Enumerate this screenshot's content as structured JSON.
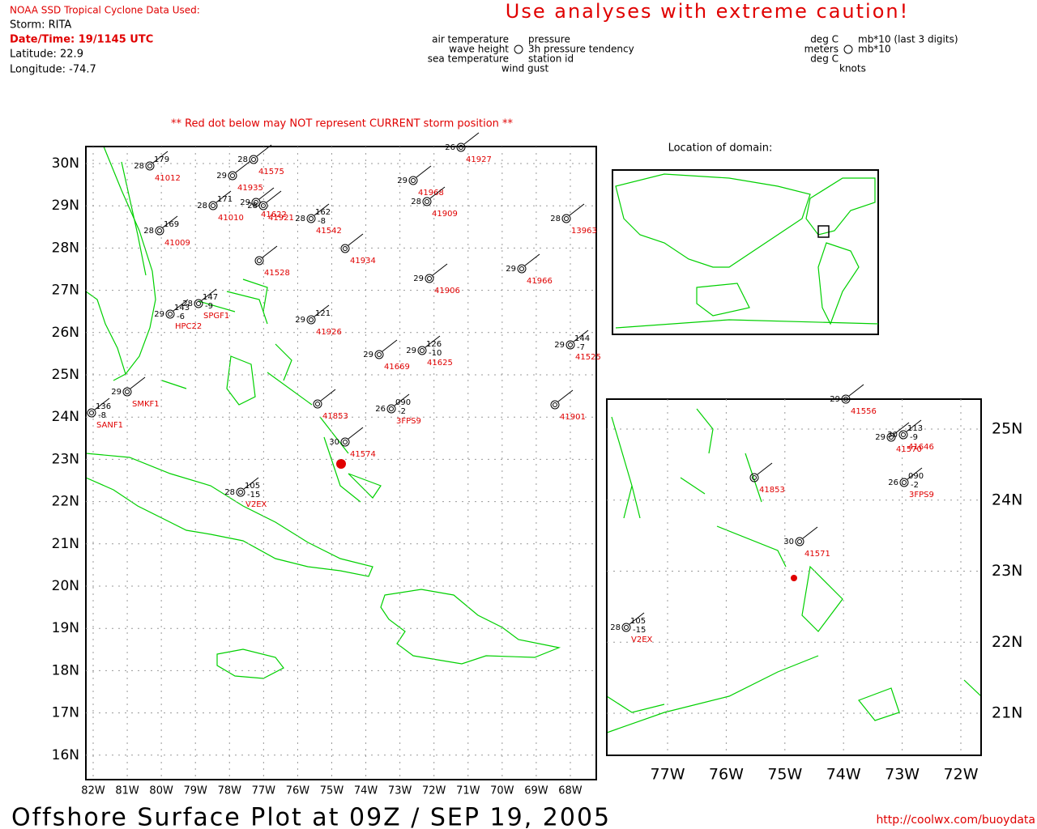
{
  "header": {
    "source": "NOAA SSD Tropical Cyclone Data Used:",
    "storm": "Storm: RITA",
    "datetime": "Date/Time: 19/1145 UTC",
    "latitude": "Latitude: 22.9",
    "longitude": "Longitude: -74.7"
  },
  "caution": "Use analyses with extreme caution!",
  "legend": {
    "left": [
      "air temperature",
      "wave height",
      "sea temperature"
    ],
    "right": [
      "pressure",
      "3h pressure tendency",
      "station id"
    ],
    "bottom": "wind gust"
  },
  "units": {
    "left": [
      "deg C",
      "meters",
      "deg C"
    ],
    "right": [
      "mb*10 (last 3 digits)",
      "mb*10"
    ],
    "bottom": "knots"
  },
  "note": "** Red dot below may NOT represent CURRENT storm position **",
  "main_map": {
    "lat_labels": [
      "30N",
      "29N",
      "28N",
      "27N",
      "26N",
      "25N",
      "24N",
      "23N",
      "22N",
      "21N",
      "20N",
      "19N",
      "18N",
      "17N",
      "16N"
    ],
    "lon_labels": [
      "82W",
      "81W",
      "80W",
      "79W",
      "78W",
      "77W",
      "76W",
      "75W",
      "74W",
      "73W",
      "72W",
      "71W",
      "70W",
      "69W",
      "68W"
    ],
    "stations": [
      {
        "id": "41012",
        "temp": "28",
        "pressure": "179"
      },
      {
        "id": "41935",
        "temp": "29"
      },
      {
        "id": "41575",
        "temp": "28"
      },
      {
        "id": "41622",
        "temp": "29"
      },
      {
        "id": "41921",
        "temp": "28"
      },
      {
        "id": "41010",
        "temp": "28",
        "pressure": "171"
      },
      {
        "id": "41009",
        "temp": "28",
        "pressure": "169"
      },
      {
        "id": "41542",
        "temp": "28",
        "pressure": "162",
        "tendency": "-8"
      },
      {
        "id": "41934"
      },
      {
        "id": "41528"
      },
      {
        "id": "41927",
        "temp": "26"
      },
      {
        "id": "41968",
        "temp": "29"
      },
      {
        "id": "41909",
        "temp": "28"
      },
      {
        "id": "13963",
        "temp": "28"
      },
      {
        "id": "41966",
        "temp": "29"
      },
      {
        "id": "41906",
        "temp": "29"
      },
      {
        "id": "SPGF1",
        "temp": "28",
        "pressure": "147",
        "tendency": "-9"
      },
      {
        "id": "41926",
        "temp": "29",
        "pressure": "121"
      },
      {
        "id": "41625",
        "temp": "29",
        "pressure": "126",
        "tendency": "-10"
      },
      {
        "id": "41669",
        "temp": "29"
      },
      {
        "id": "41901"
      },
      {
        "id": "41525",
        "temp": "29",
        "pressure": "144",
        "tendency": "-7"
      },
      {
        "id": "41853"
      },
      {
        "id": "41574",
        "temp": "30"
      },
      {
        "id": "3FPS9",
        "temp": "26",
        "pressure": "090",
        "tendency": "-2"
      },
      {
        "id": "V2EX",
        "temp": "28",
        "pressure": "105",
        "tendency": "-15"
      },
      {
        "id": "SANF1",
        "pressure": "136",
        "tendency": "-8"
      },
      {
        "id": "SMKF1",
        "temp": "29"
      },
      {
        "id": "HPC22",
        "temp": "29",
        "pressure": "143",
        "tendency": "-6"
      }
    ]
  },
  "inset_map": {
    "lat_labels": [
      "25N",
      "24N",
      "23N",
      "22N",
      "21N"
    ],
    "lon_labels": [
      "77W",
      "76W",
      "75W",
      "74W",
      "73W",
      "72W"
    ],
    "stations": [
      {
        "id": "41556",
        "temp": "29"
      },
      {
        "id": "41646",
        "temp": "30",
        "pressure": "113",
        "tendency": "-9"
      },
      {
        "id": "41570",
        "temp": "29"
      },
      {
        "id": "41853"
      },
      {
        "id": "41571",
        "temp": "30"
      },
      {
        "id": "3FPS9",
        "temp": "26",
        "pressure": "090",
        "tendency": "-2"
      },
      {
        "id": "V2EX",
        "temp": "28",
        "pressure": "105",
        "tendency": "-15"
      }
    ]
  },
  "world_inset": {
    "title": "Location of domain:"
  },
  "footer": {
    "title": "Offshore Surface Plot at 09Z / SEP 19, 2005",
    "url": "http://coolwx.com/buoydata"
  }
}
